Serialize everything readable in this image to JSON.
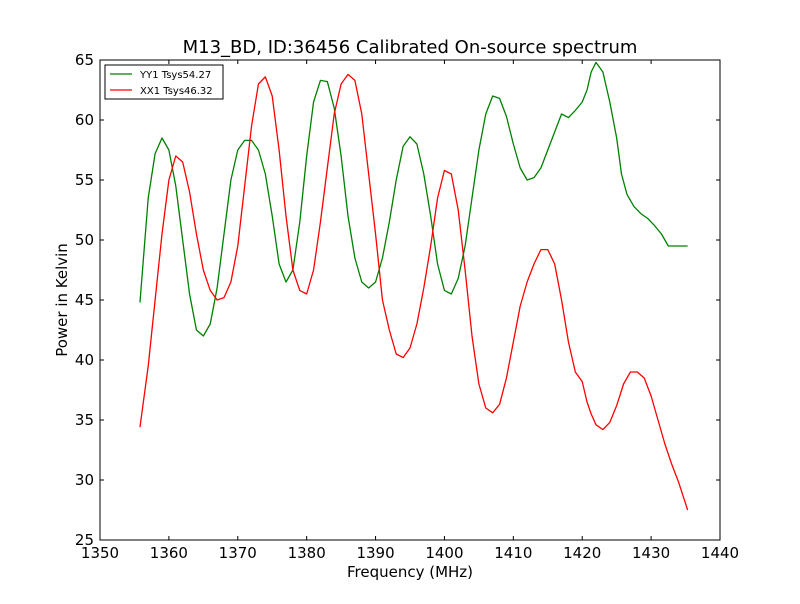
{
  "chart_data": {
    "type": "line",
    "title": "M13_BD, ID:36456 Calibrated On-source spectrum",
    "xlabel": "Frequency (MHz)",
    "ylabel": "Power in Kelvin",
    "xlim": [
      1350,
      1440
    ],
    "ylim": [
      25,
      65
    ],
    "xticks": [
      1350,
      1360,
      1370,
      1380,
      1390,
      1400,
      1410,
      1420,
      1430,
      1440
    ],
    "yticks": [
      25,
      30,
      35,
      40,
      45,
      50,
      55,
      60,
      65
    ],
    "xtick_labels": [
      "1350",
      "1360",
      "1370",
      "1380",
      "1390",
      "1400",
      "1410",
      "1420",
      "1430",
      "1440"
    ],
    "ytick_labels": [
      "25",
      "30",
      "35",
      "40",
      "45",
      "50",
      "55",
      "60",
      "65"
    ],
    "grid": false,
    "legend_position": "top-left",
    "series": [
      {
        "name": "YY1 Tsys54.27",
        "color": "#008000",
        "x": [
          1355.8,
          1357.0,
          1358.0,
          1359.0,
          1360.0,
          1361.0,
          1362.0,
          1363.0,
          1364.0,
          1365.0,
          1366.0,
          1367.0,
          1368.0,
          1369.0,
          1370.0,
          1371.0,
          1372.0,
          1373.0,
          1374.0,
          1375.0,
          1376.0,
          1377.0,
          1378.0,
          1379.0,
          1380.0,
          1381.0,
          1382.0,
          1383.0,
          1384.0,
          1385.0,
          1386.0,
          1387.0,
          1388.0,
          1389.0,
          1390.0,
          1391.0,
          1392.0,
          1393.0,
          1394.0,
          1395.0,
          1396.0,
          1397.0,
          1398.0,
          1399.0,
          1400.0,
          1401.0,
          1402.0,
          1403.0,
          1404.0,
          1405.0,
          1406.0,
          1407.0,
          1408.0,
          1409.0,
          1410.0,
          1411.0,
          1412.0,
          1413.0,
          1414.0,
          1415.0,
          1416.0,
          1417.0,
          1418.0,
          1419.0,
          1420.0,
          1420.7,
          1421.3,
          1422.0,
          1423.0,
          1424.0,
          1425.0,
          1425.7,
          1426.5,
          1427.5,
          1428.5,
          1429.5,
          1430.5,
          1431.5,
          1432.5,
          1433.5,
          1434.5,
          1435.3
        ],
        "y": [
          44.8,
          53.5,
          57.2,
          58.5,
          57.5,
          54.5,
          50.0,
          45.5,
          42.5,
          42.0,
          43.0,
          46.0,
          50.5,
          55.0,
          57.5,
          58.3,
          58.3,
          57.5,
          55.5,
          52.0,
          48.0,
          46.5,
          47.5,
          51.5,
          57.0,
          61.5,
          63.3,
          63.2,
          61.0,
          57.0,
          52.0,
          48.5,
          46.5,
          46.0,
          46.5,
          48.5,
          51.5,
          55.0,
          57.8,
          58.6,
          58.0,
          55.5,
          52.0,
          48.0,
          45.8,
          45.5,
          46.8,
          49.5,
          53.5,
          57.5,
          60.5,
          62.0,
          61.8,
          60.3,
          58.0,
          56.0,
          55.0,
          55.2,
          56.0,
          57.5,
          59.0,
          60.5,
          60.2,
          60.8,
          61.5,
          62.5,
          64.0,
          64.8,
          64.0,
          61.5,
          58.5,
          55.5,
          53.8,
          52.8,
          52.2,
          51.8,
          51.2,
          50.5,
          49.5,
          49.5,
          49.5,
          49.5
        ],
        "values_note": ""
      },
      {
        "name": "XX1 Tsys46.32",
        "color": "#ff0000",
        "x": [
          1355.8,
          1357.0,
          1358.0,
          1359.0,
          1360.0,
          1361.0,
          1362.0,
          1363.0,
          1364.0,
          1365.0,
          1366.0,
          1367.0,
          1368.0,
          1369.0,
          1370.0,
          1371.0,
          1372.0,
          1373.0,
          1374.0,
          1375.0,
          1376.0,
          1377.0,
          1378.0,
          1379.0,
          1380.0,
          1381.0,
          1382.0,
          1383.0,
          1384.0,
          1385.0,
          1386.0,
          1387.0,
          1388.0,
          1389.0,
          1390.0,
          1391.0,
          1392.0,
          1393.0,
          1394.0,
          1395.0,
          1396.0,
          1397.0,
          1398.0,
          1399.0,
          1400.0,
          1401.0,
          1402.0,
          1403.0,
          1404.0,
          1405.0,
          1406.0,
          1407.0,
          1408.0,
          1409.0,
          1410.0,
          1411.0,
          1412.0,
          1413.0,
          1414.0,
          1415.0,
          1416.0,
          1417.0,
          1418.0,
          1419.0,
          1420.0,
          1420.7,
          1421.3,
          1422.0,
          1423.0,
          1424.0,
          1425.0,
          1426.0,
          1427.0,
          1428.0,
          1429.0,
          1430.0,
          1431.0,
          1432.0,
          1433.0,
          1434.0,
          1435.3
        ],
        "y": [
          34.4,
          39.5,
          45.0,
          50.5,
          55.0,
          57.0,
          56.5,
          54.0,
          50.5,
          47.5,
          45.8,
          45.0,
          45.2,
          46.5,
          49.5,
          54.5,
          59.5,
          63.0,
          63.6,
          62.0,
          57.5,
          52.0,
          47.5,
          45.8,
          45.5,
          47.5,
          51.5,
          56.0,
          60.5,
          63.0,
          63.8,
          63.3,
          60.5,
          55.5,
          50.5,
          45.0,
          42.5,
          40.5,
          40.2,
          41.0,
          43.0,
          46.0,
          49.5,
          53.5,
          55.8,
          55.5,
          52.5,
          47.5,
          42.0,
          38.0,
          36.0,
          35.6,
          36.3,
          38.5,
          41.5,
          44.5,
          46.5,
          48.0,
          49.2,
          49.2,
          48.0,
          45.0,
          41.5,
          39.0,
          38.2,
          36.5,
          35.5,
          34.6,
          34.2,
          34.8,
          36.2,
          38.0,
          39.0,
          39.0,
          38.5,
          37.0,
          35.0,
          33.0,
          31.3,
          29.8,
          27.5
        ],
        "values_note": ""
      }
    ]
  }
}
